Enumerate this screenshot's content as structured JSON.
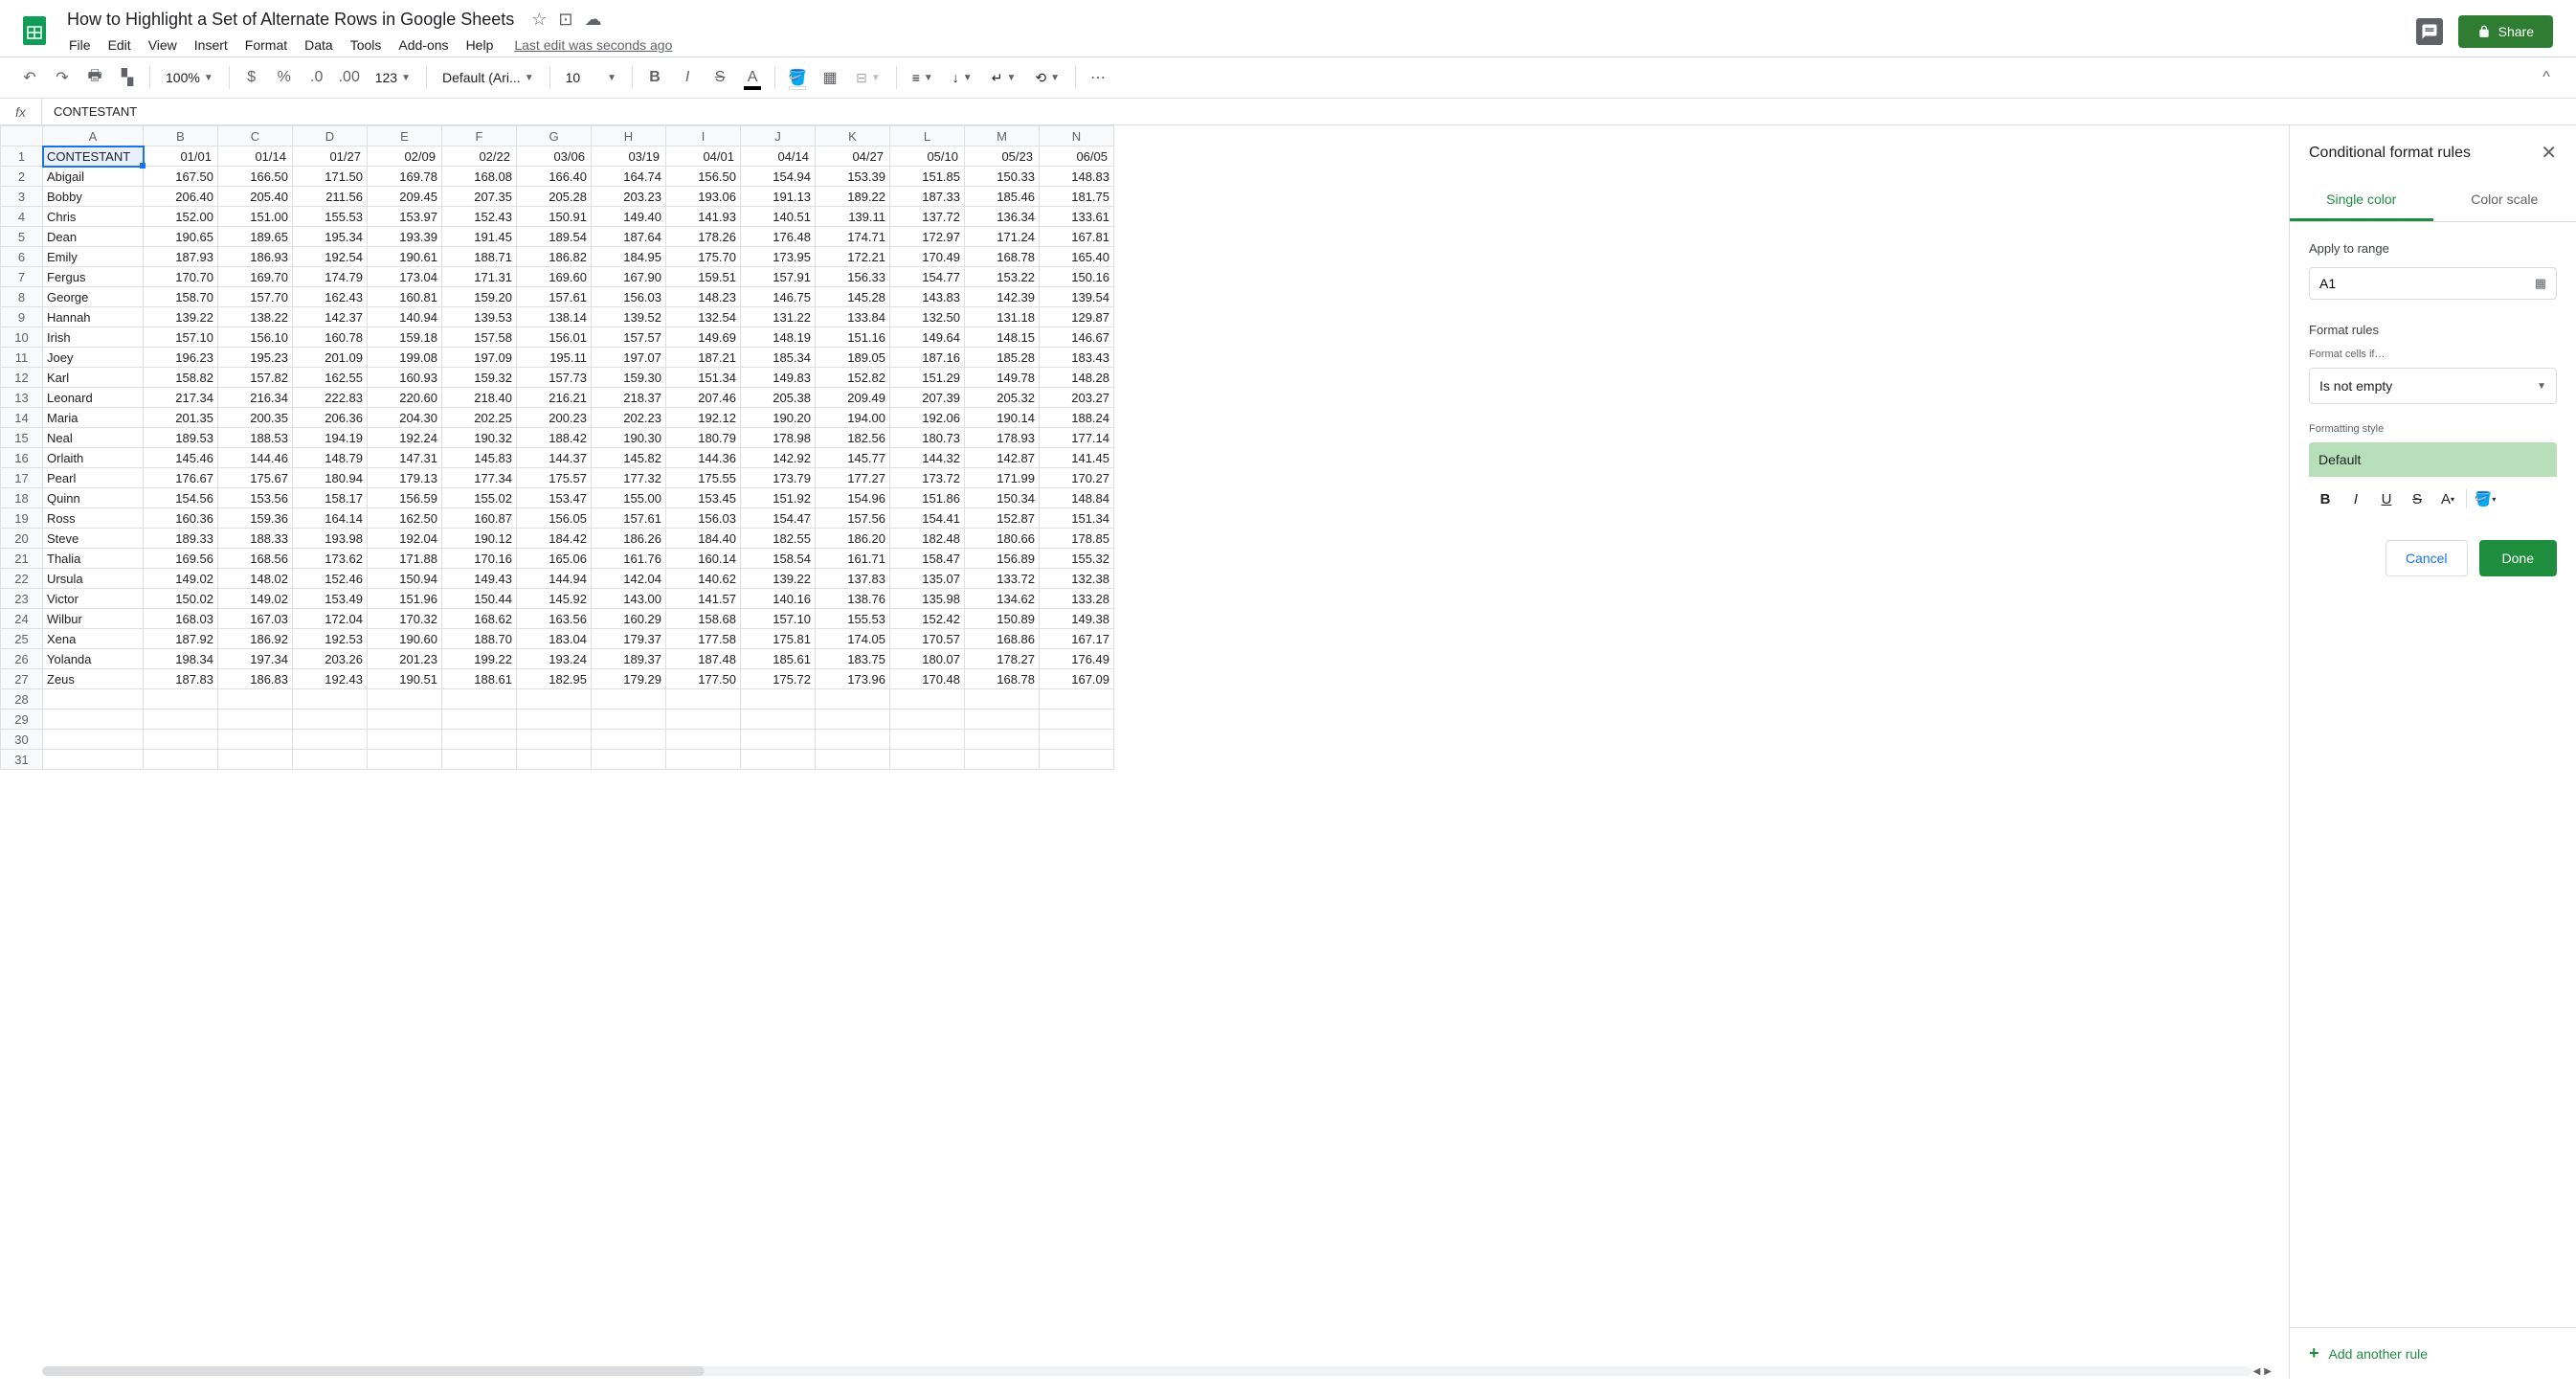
{
  "doc_title": "How to Highlight a Set of Alternate Rows in Google Sheets",
  "menu": [
    "File",
    "Edit",
    "View",
    "Insert",
    "Format",
    "Data",
    "Tools",
    "Add-ons",
    "Help"
  ],
  "last_edit": "Last edit was seconds ago",
  "share_label": "Share",
  "toolbar": {
    "zoom": "100%",
    "font": "Default (Ari...",
    "font_size": "10",
    "number_format": "123"
  },
  "formula_value": "CONTESTANT",
  "columns": [
    "A",
    "B",
    "C",
    "D",
    "E",
    "F",
    "G",
    "H",
    "I",
    "J",
    "K",
    "L",
    "M",
    "N"
  ],
  "header_row": [
    "CONTESTANT",
    "01/01",
    "01/14",
    "01/27",
    "02/09",
    "02/22",
    "03/06",
    "03/19",
    "04/01",
    "04/14",
    "04/27",
    "05/10",
    "05/23",
    "06/05"
  ],
  "data_rows": [
    [
      "Abigail",
      "167.50",
      "166.50",
      "171.50",
      "169.78",
      "168.08",
      "166.40",
      "164.74",
      "156.50",
      "154.94",
      "153.39",
      "151.85",
      "150.33",
      "148.83"
    ],
    [
      "Bobby",
      "206.40",
      "205.40",
      "211.56",
      "209.45",
      "207.35",
      "205.28",
      "203.23",
      "193.06",
      "191.13",
      "189.22",
      "187.33",
      "185.46",
      "181.75"
    ],
    [
      "Chris",
      "152.00",
      "151.00",
      "155.53",
      "153.97",
      "152.43",
      "150.91",
      "149.40",
      "141.93",
      "140.51",
      "139.11",
      "137.72",
      "136.34",
      "133.61"
    ],
    [
      "Dean",
      "190.65",
      "189.65",
      "195.34",
      "193.39",
      "191.45",
      "189.54",
      "187.64",
      "178.26",
      "176.48",
      "174.71",
      "172.97",
      "171.24",
      "167.81"
    ],
    [
      "Emily",
      "187.93",
      "186.93",
      "192.54",
      "190.61",
      "188.71",
      "186.82",
      "184.95",
      "175.70",
      "173.95",
      "172.21",
      "170.49",
      "168.78",
      "165.40"
    ],
    [
      "Fergus",
      "170.70",
      "169.70",
      "174.79",
      "173.04",
      "171.31",
      "169.60",
      "167.90",
      "159.51",
      "157.91",
      "156.33",
      "154.77",
      "153.22",
      "150.16"
    ],
    [
      "George",
      "158.70",
      "157.70",
      "162.43",
      "160.81",
      "159.20",
      "157.61",
      "156.03",
      "148.23",
      "146.75",
      "145.28",
      "143.83",
      "142.39",
      "139.54"
    ],
    [
      "Hannah",
      "139.22",
      "138.22",
      "142.37",
      "140.94",
      "139.53",
      "138.14",
      "139.52",
      "132.54",
      "131.22",
      "133.84",
      "132.50",
      "131.18",
      "129.87"
    ],
    [
      "Irish",
      "157.10",
      "156.10",
      "160.78",
      "159.18",
      "157.58",
      "156.01",
      "157.57",
      "149.69",
      "148.19",
      "151.16",
      "149.64",
      "148.15",
      "146.67"
    ],
    [
      "Joey",
      "196.23",
      "195.23",
      "201.09",
      "199.08",
      "197.09",
      "195.11",
      "197.07",
      "187.21",
      "185.34",
      "189.05",
      "187.16",
      "185.28",
      "183.43"
    ],
    [
      "Karl",
      "158.82",
      "157.82",
      "162.55",
      "160.93",
      "159.32",
      "157.73",
      "159.30",
      "151.34",
      "149.83",
      "152.82",
      "151.29",
      "149.78",
      "148.28"
    ],
    [
      "Leonard",
      "217.34",
      "216.34",
      "222.83",
      "220.60",
      "218.40",
      "216.21",
      "218.37",
      "207.46",
      "205.38",
      "209.49",
      "207.39",
      "205.32",
      "203.27"
    ],
    [
      "Maria",
      "201.35",
      "200.35",
      "206.36",
      "204.30",
      "202.25",
      "200.23",
      "202.23",
      "192.12",
      "190.20",
      "194.00",
      "192.06",
      "190.14",
      "188.24"
    ],
    [
      "Neal",
      "189.53",
      "188.53",
      "194.19",
      "192.24",
      "190.32",
      "188.42",
      "190.30",
      "180.79",
      "178.98",
      "182.56",
      "180.73",
      "178.93",
      "177.14"
    ],
    [
      "Orlaith",
      "145.46",
      "144.46",
      "148.79",
      "147.31",
      "145.83",
      "144.37",
      "145.82",
      "144.36",
      "142.92",
      "145.77",
      "144.32",
      "142.87",
      "141.45"
    ],
    [
      "Pearl",
      "176.67",
      "175.67",
      "180.94",
      "179.13",
      "177.34",
      "175.57",
      "177.32",
      "175.55",
      "173.79",
      "177.27",
      "173.72",
      "171.99",
      "170.27"
    ],
    [
      "Quinn",
      "154.56",
      "153.56",
      "158.17",
      "156.59",
      "155.02",
      "153.47",
      "155.00",
      "153.45",
      "151.92",
      "154.96",
      "151.86",
      "150.34",
      "148.84"
    ],
    [
      "Ross",
      "160.36",
      "159.36",
      "164.14",
      "162.50",
      "160.87",
      "156.05",
      "157.61",
      "156.03",
      "154.47",
      "157.56",
      "154.41",
      "152.87",
      "151.34"
    ],
    [
      "Steve",
      "189.33",
      "188.33",
      "193.98",
      "192.04",
      "190.12",
      "184.42",
      "186.26",
      "184.40",
      "182.55",
      "186.20",
      "182.48",
      "180.66",
      "178.85"
    ],
    [
      "Thalia",
      "169.56",
      "168.56",
      "173.62",
      "171.88",
      "170.16",
      "165.06",
      "161.76",
      "160.14",
      "158.54",
      "161.71",
      "158.47",
      "156.89",
      "155.32"
    ],
    [
      "Ursula",
      "149.02",
      "148.02",
      "152.46",
      "150.94",
      "149.43",
      "144.94",
      "142.04",
      "140.62",
      "139.22",
      "137.83",
      "135.07",
      "133.72",
      "132.38"
    ],
    [
      "Victor",
      "150.02",
      "149.02",
      "153.49",
      "151.96",
      "150.44",
      "145.92",
      "143.00",
      "141.57",
      "140.16",
      "138.76",
      "135.98",
      "134.62",
      "133.28"
    ],
    [
      "Wilbur",
      "168.03",
      "167.03",
      "172.04",
      "170.32",
      "168.62",
      "163.56",
      "160.29",
      "158.68",
      "157.10",
      "155.53",
      "152.42",
      "150.89",
      "149.38"
    ],
    [
      "Xena",
      "187.92",
      "186.92",
      "192.53",
      "190.60",
      "188.70",
      "183.04",
      "179.37",
      "177.58",
      "175.81",
      "174.05",
      "170.57",
      "168.86",
      "167.17"
    ],
    [
      "Yolanda",
      "198.34",
      "197.34",
      "203.26",
      "201.23",
      "199.22",
      "193.24",
      "189.37",
      "187.48",
      "185.61",
      "183.75",
      "180.07",
      "178.27",
      "176.49"
    ],
    [
      "Zeus",
      "187.83",
      "186.83",
      "192.43",
      "190.51",
      "188.61",
      "182.95",
      "179.29",
      "177.50",
      "175.72",
      "173.96",
      "170.48",
      "168.78",
      "167.09"
    ]
  ],
  "empty_rows": [
    28,
    29,
    30,
    31
  ],
  "sidebar": {
    "title": "Conditional format rules",
    "tab_single": "Single color",
    "tab_scale": "Color scale",
    "apply_to_range": "Apply to range",
    "range_value": "A1",
    "format_rules": "Format rules",
    "format_cells_if": "Format cells if…",
    "condition": "Is not empty",
    "formatting_style": "Formatting style",
    "style_preview": "Default",
    "cancel": "Cancel",
    "done": "Done",
    "add_rule": "Add another rule"
  },
  "colors": {
    "accent_green": "#1e8e3e",
    "share_green": "#2e7d32",
    "preview_bg": "#b7dfb9",
    "active_blue": "#1a73e8"
  }
}
